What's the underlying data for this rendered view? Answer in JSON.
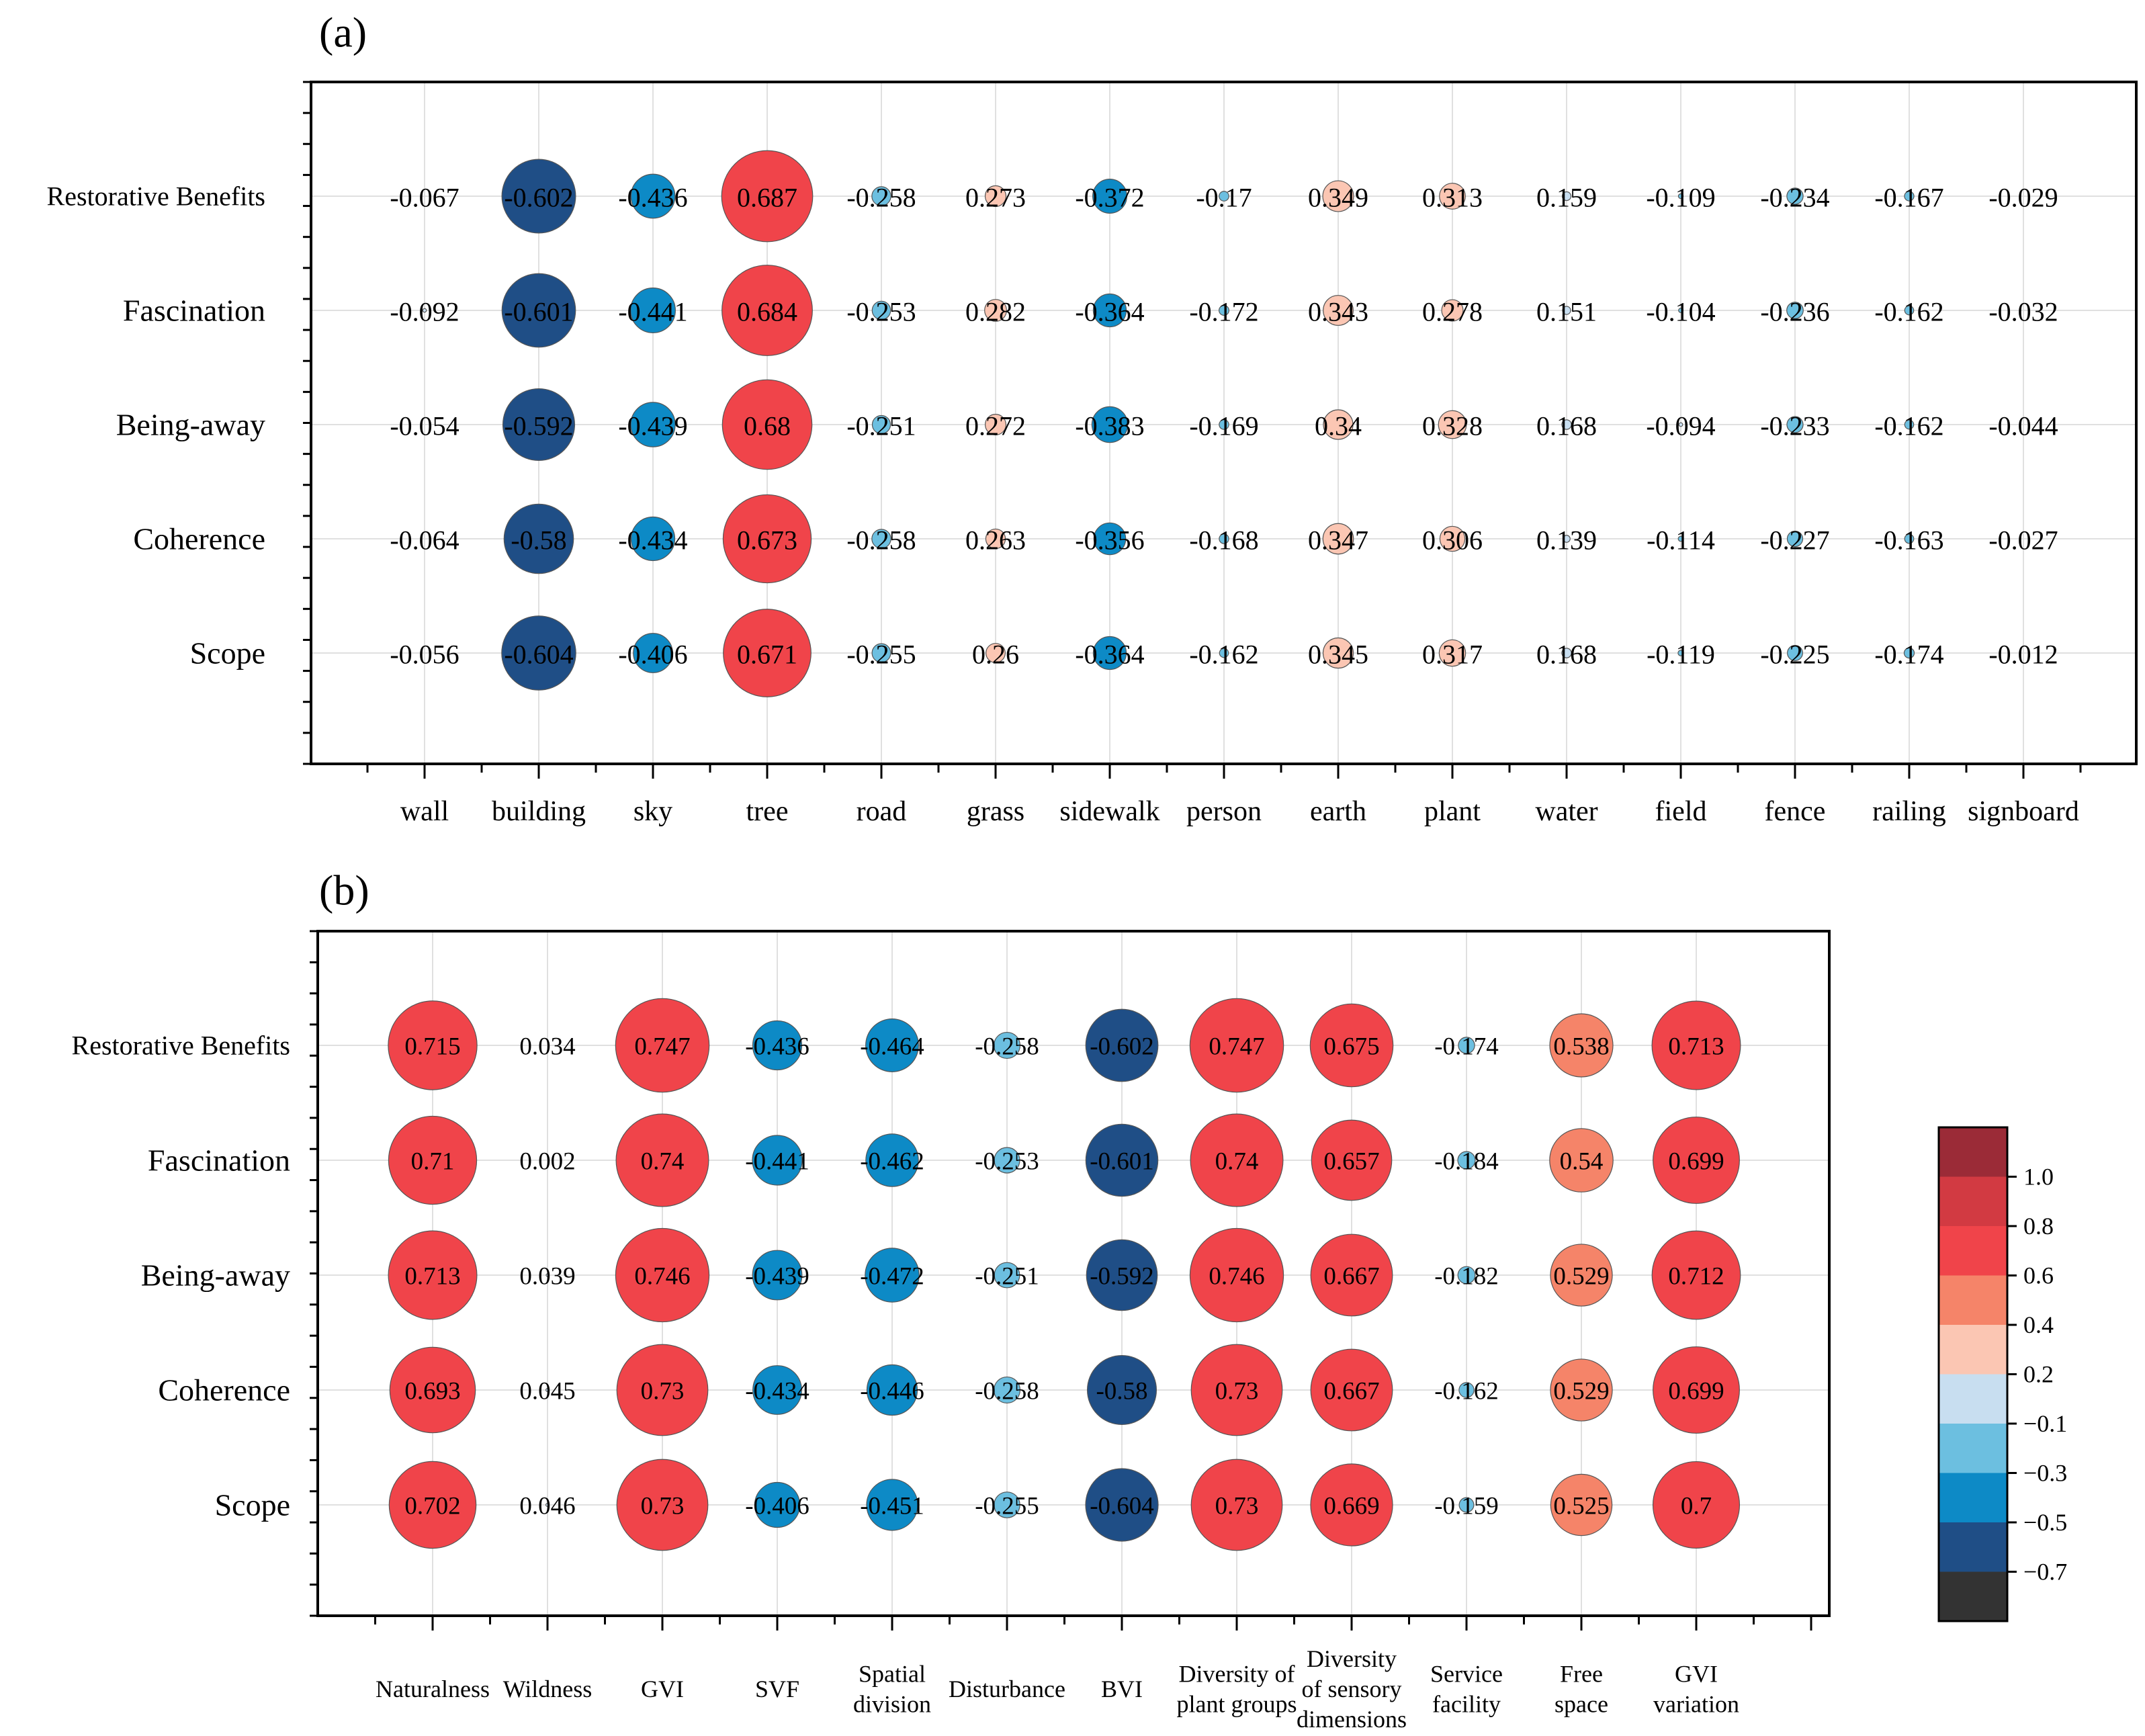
{
  "chart_data": [
    {
      "type": "bubble-correlation",
      "panel_label": "(a)",
      "rows": [
        "Restorative Benefits",
        "Fascination",
        "Being-away",
        "Coherence",
        "Scope"
      ],
      "columns": [
        "wall",
        "building",
        "sky",
        "tree",
        "road",
        "grass",
        "sidewalk",
        "person",
        "earth",
        "plant",
        "water",
        "field",
        "fence",
        "railing",
        "signboard"
      ],
      "values": [
        [
          -0.067,
          -0.602,
          -0.436,
          0.687,
          -0.258,
          0.273,
          -0.372,
          -0.17,
          0.349,
          0.313,
          0.159,
          -0.109,
          -0.234,
          -0.167,
          -0.029
        ],
        [
          -0.092,
          -0.601,
          -0.441,
          0.684,
          -0.253,
          0.282,
          -0.364,
          -0.172,
          0.343,
          0.278,
          0.151,
          -0.104,
          -0.236,
          -0.162,
          -0.032
        ],
        [
          -0.054,
          -0.592,
          -0.439,
          0.68,
          -0.251,
          0.272,
          -0.383,
          -0.169,
          0.34,
          0.328,
          0.168,
          -0.094,
          -0.233,
          -0.162,
          -0.044
        ],
        [
          -0.064,
          -0.58,
          -0.434,
          0.673,
          -0.258,
          0.263,
          -0.356,
          -0.168,
          0.347,
          0.306,
          0.139,
          -0.114,
          -0.227,
          -0.163,
          -0.027
        ],
        [
          -0.056,
          -0.604,
          -0.406,
          0.671,
          -0.255,
          0.26,
          -0.364,
          -0.162,
          0.345,
          0.317,
          0.168,
          -0.119,
          -0.225,
          -0.174,
          -0.012
        ]
      ],
      "value_labels": [
        [
          "-0.067",
          "-0.602",
          "-0.436",
          "0.687",
          "-0.258",
          "0.273",
          "-0.372",
          "-0.17",
          "0.349",
          "0.313",
          "0.159",
          "-0.109",
          "-0.234",
          "-0.167",
          "-0.029"
        ],
        [
          "-0.092",
          "-0.601",
          "-0.441",
          "0.684",
          "-0.253",
          "0.282",
          "-0.364",
          "-0.172",
          "0.343",
          "0.278",
          "0.151",
          "-0.104",
          "-0.236",
          "-0.162",
          "-0.032"
        ],
        [
          "-0.054",
          "-0.592",
          "-0.439",
          "0.68",
          "-0.251",
          "0.272",
          "-0.383",
          "-0.169",
          "0.34",
          "0.328",
          "0.168",
          "-0.094",
          "-0.233",
          "-0.162",
          "-0.044"
        ],
        [
          "-0.064",
          "-0.58",
          "-0.434",
          "0.673",
          "-0.258",
          "0.263",
          "-0.356",
          "-0.168",
          "0.347",
          "0.306",
          "0.139",
          "-0.114",
          "-0.227",
          "-0.163",
          "-0.027"
        ],
        [
          "-0.056",
          "-0.604",
          "-0.406",
          "0.671",
          "-0.255",
          "0.26",
          "-0.364",
          "-0.162",
          "0.345",
          "0.317",
          "0.168",
          "-0.119",
          "-0.225",
          "-0.174",
          "-0.012"
        ]
      ]
    },
    {
      "type": "bubble-correlation",
      "panel_label": "(b)",
      "rows": [
        "Restorative Benefits",
        "Fascination",
        "Being-away",
        "Coherence",
        "Scope"
      ],
      "columns": [
        [
          "Naturalness"
        ],
        [
          "Wildness"
        ],
        [
          "GVI"
        ],
        [
          "SVF"
        ],
        [
          "Spatial",
          "division"
        ],
        [
          "Disturbance"
        ],
        [
          "BVI"
        ],
        [
          "Diversity of",
          "plant groups"
        ],
        [
          "Diversity",
          "of  sensory",
          "dimensions"
        ],
        [
          "Service",
          "facility"
        ],
        [
          "Free",
          "space"
        ],
        [
          "GVI",
          "variation"
        ]
      ],
      "values": [
        [
          0.715,
          0.034,
          0.747,
          -0.436,
          -0.464,
          -0.258,
          -0.602,
          0.747,
          0.675,
          -0.174,
          0.538,
          0.713
        ],
        [
          0.71,
          0.002,
          0.74,
          -0.441,
          -0.462,
          -0.253,
          -0.601,
          0.74,
          0.657,
          -0.184,
          0.54,
          0.699
        ],
        [
          0.713,
          0.039,
          0.746,
          -0.439,
          -0.472,
          -0.251,
          -0.592,
          0.746,
          0.667,
          -0.182,
          0.529,
          0.712
        ],
        [
          0.693,
          0.045,
          0.73,
          -0.434,
          -0.446,
          -0.258,
          -0.58,
          0.73,
          0.667,
          -0.162,
          0.529,
          0.699
        ],
        [
          0.702,
          0.046,
          0.73,
          -0.406,
          -0.451,
          -0.255,
          -0.604,
          0.73,
          0.669,
          -0.159,
          0.525,
          0.7
        ]
      ],
      "value_labels": [
        [
          "0.715",
          "0.034",
          "0.747",
          "-0.436",
          "-0.464",
          "-0.258",
          "-0.602",
          "0.747",
          "0.675",
          "-0.174",
          "0.538",
          "0.713"
        ],
        [
          "0.71",
          "0.002",
          "0.74",
          "-0.441",
          "-0.462",
          "-0.253",
          "-0.601",
          "0.74",
          "0.657",
          "-0.184",
          "0.54",
          "0.699"
        ],
        [
          "0.713",
          "0.039",
          "0.746",
          "-0.439",
          "-0.472",
          "-0.251",
          "-0.592",
          "0.746",
          "0.667",
          "-0.182",
          "0.529",
          "0.712"
        ],
        [
          "0.693",
          "0.045",
          "0.73",
          "-0.434",
          "-0.446",
          "-0.258",
          "-0.58",
          "0.73",
          "0.667",
          "-0.162",
          "0.529",
          "0.699"
        ],
        [
          "0.702",
          "0.046",
          "0.73",
          "-0.406",
          "-0.451",
          "-0.255",
          "-0.604",
          "0.73",
          "0.669",
          "-0.159",
          "0.525",
          "0.7"
        ]
      ]
    }
  ],
  "colorbar": {
    "tick_labels": [
      "1.0",
      "0.8",
      "0.6",
      "0.4",
      "0.2",
      "−0.1",
      "−0.3",
      "−0.5",
      "−0.7"
    ],
    "colors": [
      "#9b2b37",
      "#d23a42",
      "#f0444a",
      "#f58469",
      "#fbc6b3",
      "#c8def0",
      "#6cbfe0",
      "#0d8ac6",
      "#1f4e86",
      "#333333"
    ]
  },
  "colors": {
    "grid": "#d6d6d6",
    "axis": "#000000",
    "bubble_stroke": "#555555"
  }
}
